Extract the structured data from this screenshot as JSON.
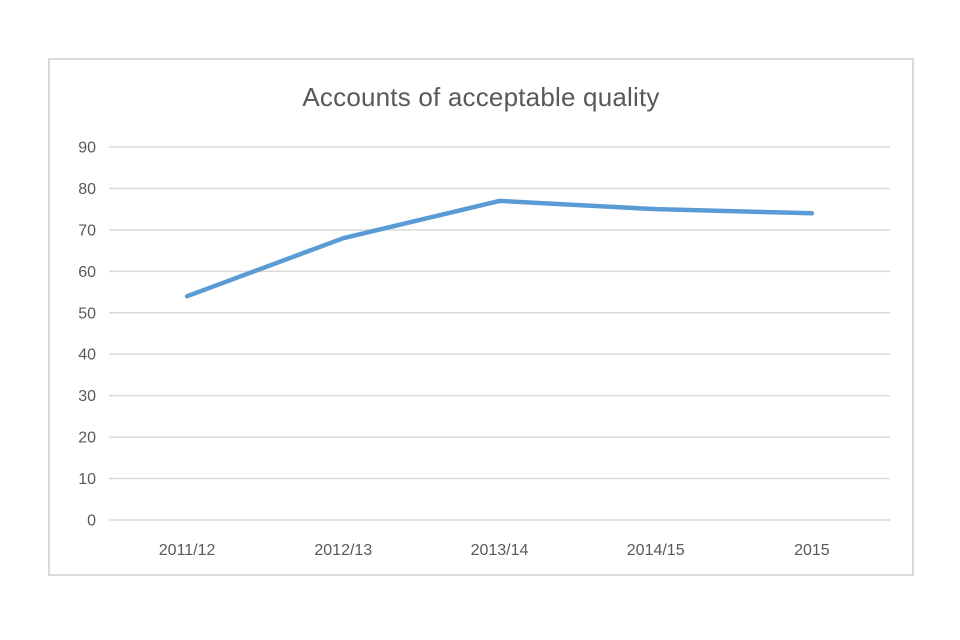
{
  "chart_data": {
    "type": "line",
    "title": "Accounts of acceptable quality",
    "categories": [
      "2011/12",
      "2012/13",
      "2013/14",
      "2014/15",
      "2015"
    ],
    "series": [
      {
        "name": "Accounts of acceptable quality",
        "values": [
          54,
          68,
          77,
          75,
          74
        ]
      }
    ],
    "xlabel": "",
    "ylabel": "",
    "ylim": [
      0,
      90
    ],
    "y_tick_step": 10,
    "y_tick_labels": [
      "0",
      "10",
      "20",
      "30",
      "40",
      "50",
      "60",
      "70",
      "80",
      "90"
    ],
    "grid": true,
    "legend": false,
    "colors": {
      "line": "#5b9bd5",
      "gridline": "#d9d9d9",
      "border": "#d9d9d9",
      "text": "#595959",
      "background": "#ffffff"
    }
  }
}
